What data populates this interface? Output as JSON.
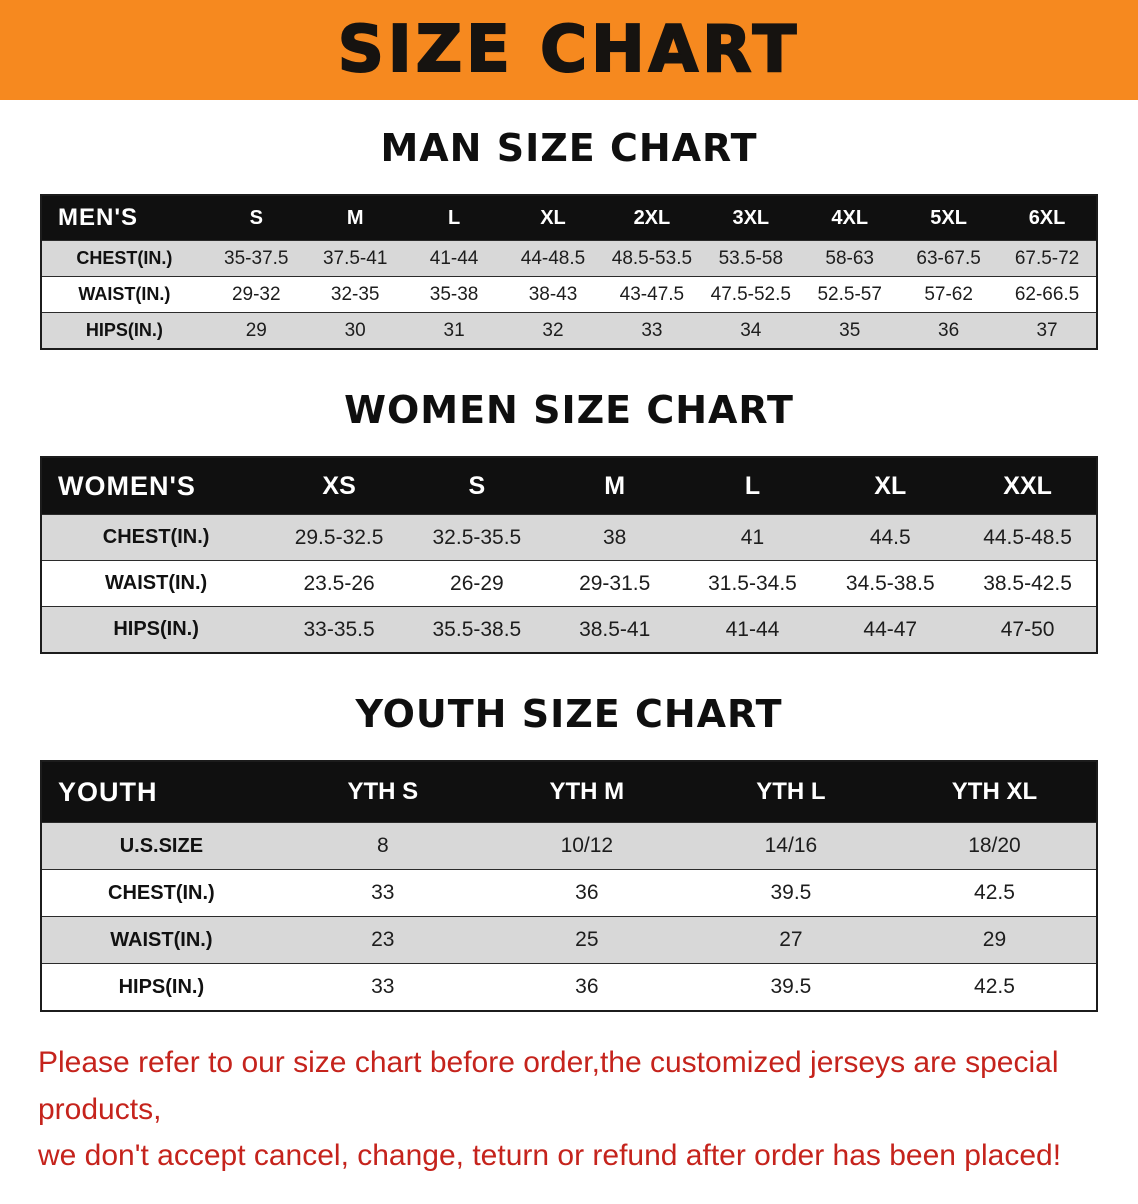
{
  "banner": {
    "title": "SIZE CHART"
  },
  "colors": {
    "banner_orange": "#f6891f",
    "header_black": "#101010",
    "row_shade_gray": "#d8d8d8",
    "notice_red": "#c5231c"
  },
  "chart_data": [
    {
      "type": "table",
      "title": "MAN SIZE CHART",
      "corner_label": "MEN'S",
      "columns": [
        "S",
        "M",
        "L",
        "XL",
        "2XL",
        "3XL",
        "4XL",
        "5XL",
        "6XL"
      ],
      "rows": [
        {
          "label": "CHEST(IN.)",
          "values": [
            "35-37.5",
            "37.5-41",
            "41-44",
            "44-48.5",
            "48.5-53.5",
            "53.5-58",
            "58-63",
            "63-67.5",
            "67.5-72"
          ]
        },
        {
          "label": "WAIST(IN.)",
          "values": [
            "29-32",
            "32-35",
            "35-38",
            "38-43",
            "43-47.5",
            "47.5-52.5",
            "52.5-57",
            "57-62",
            "62-66.5"
          ]
        },
        {
          "label": "HIPS(IN.)",
          "values": [
            "29",
            "30",
            "31",
            "32",
            "33",
            "34",
            "35",
            "36",
            "37"
          ]
        }
      ]
    },
    {
      "type": "table",
      "title": "WOMEN SIZE CHART",
      "corner_label": "WOMEN'S",
      "columns": [
        "XS",
        "S",
        "M",
        "L",
        "XL",
        "XXL"
      ],
      "rows": [
        {
          "label": "CHEST(IN.)",
          "values": [
            "29.5-32.5",
            "32.5-35.5",
            "38",
            "41",
            "44.5",
            "44.5-48.5"
          ]
        },
        {
          "label": "WAIST(IN.)",
          "values": [
            "23.5-26",
            "26-29",
            "29-31.5",
            "31.5-34.5",
            "34.5-38.5",
            "38.5-42.5"
          ]
        },
        {
          "label": "HIPS(IN.)",
          "values": [
            "33-35.5",
            "35.5-38.5",
            "38.5-41",
            "41-44",
            "44-47",
            "47-50"
          ]
        }
      ]
    },
    {
      "type": "table",
      "title": "YOUTH SIZE CHART",
      "corner_label": "YOUTH",
      "columns": [
        "YTH S",
        "YTH M",
        "YTH L",
        "YTH XL"
      ],
      "rows": [
        {
          "label": "U.S.SIZE",
          "values": [
            "8",
            "10/12",
            "14/16",
            "18/20"
          ]
        },
        {
          "label": "CHEST(IN.)",
          "values": [
            "33",
            "36",
            "39.5",
            "42.5"
          ]
        },
        {
          "label": "WAIST(IN.)",
          "values": [
            "23",
            "25",
            "27",
            "29"
          ]
        },
        {
          "label": "HIPS(IN.)",
          "values": [
            "33",
            "36",
            "39.5",
            "42.5"
          ]
        }
      ]
    }
  ],
  "footer": {
    "lines": [
      "Please refer to our size chart before order,the customized jerseys are special products,",
      "we don't accept cancel, change, teturn or refund after order has been placed!"
    ]
  }
}
